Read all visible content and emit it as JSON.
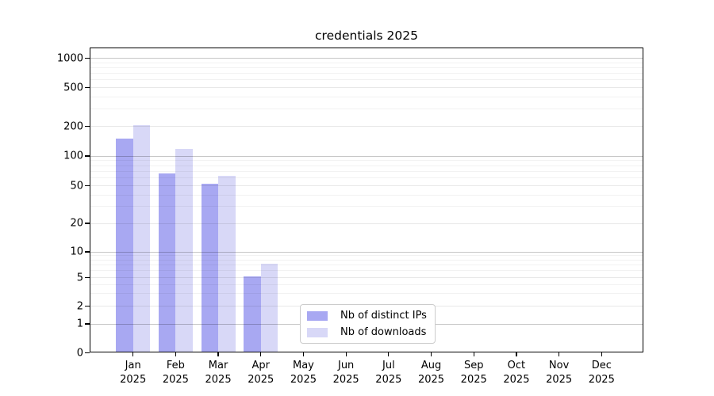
{
  "title": "credentials 2025",
  "chart_data": {
    "type": "bar",
    "title": "credentials 2025",
    "categories": [
      "Jan",
      "Feb",
      "Mar",
      "Apr",
      "May",
      "Jun",
      "Jul",
      "Aug",
      "Sep",
      "Oct",
      "Nov",
      "Dec"
    ],
    "x_tick_year": "2025",
    "series": [
      {
        "name": "Nb of distinct IPs",
        "color": "#a8a8f2",
        "values": [
          146,
          65,
          51,
          5,
          0,
          0,
          0,
          0,
          0,
          0,
          0,
          0
        ]
      },
      {
        "name": "Nb of downloads",
        "color": "#d8d8f7",
        "values": [
          200,
          115,
          61,
          7,
          0,
          0,
          0,
          0,
          0,
          0,
          0,
          0
        ]
      }
    ],
    "xlabel": "",
    "ylabel": "",
    "y_scale": "symlog",
    "y_ticks": [
      0,
      1,
      2,
      5,
      10,
      20,
      50,
      100,
      200,
      500,
      1000
    ],
    "ylim": [
      0,
      1300
    ],
    "grid": "both",
    "grid_over_bars": true,
    "legend_position": "lower center",
    "colors": {
      "axis": "#000000",
      "grid_major": "#c7c7c7",
      "grid_minor": "#f2f2f2",
      "legend_border": "#cccccc",
      "background": "#ffffff"
    }
  }
}
